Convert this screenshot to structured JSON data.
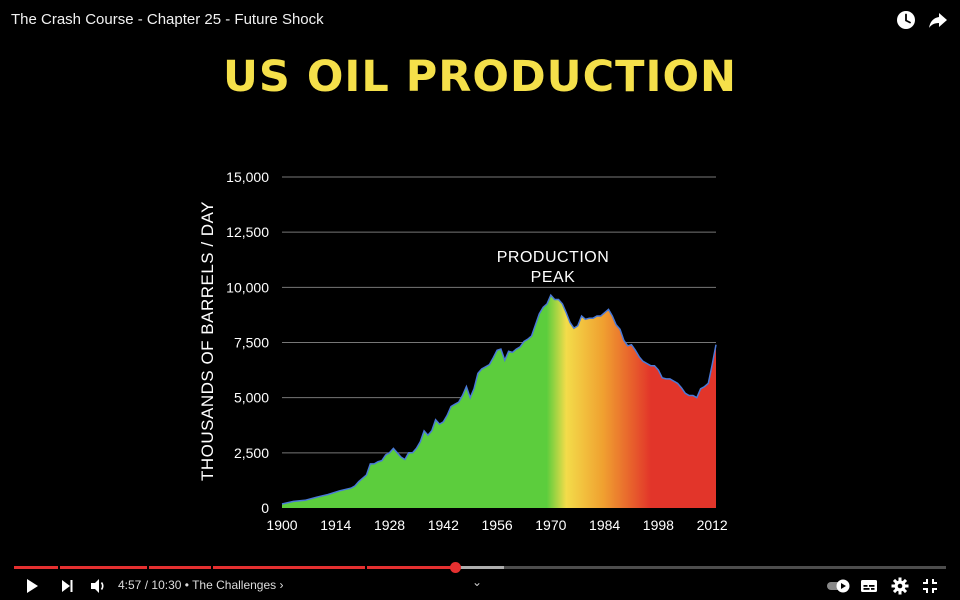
{
  "player": {
    "title": "The Crash Course - Chapter 25 - Future Shock",
    "time_current": "4:57",
    "time_total": "10:30",
    "chapter": "The Challenges",
    "progress_played": 0.473,
    "progress_buffered": 0.526
  },
  "slide": {
    "title": "US OIL PRODUCTION",
    "title_color": "#f5e04a"
  },
  "icons": {
    "watch_later": "clock-icon",
    "share": "share-icon",
    "play": "play-icon",
    "next": "next-icon",
    "volume": "volume-icon",
    "autoplay": "autoplay-toggle-icon",
    "subtitles": "subtitles-icon",
    "settings": "gear-icon",
    "exit_fullscreen": "exit-fullscreen-icon"
  },
  "chart_data": {
    "type": "area",
    "ylabel": "THOUSANDS OF BARRELS / DAY",
    "ylim": [
      0,
      15000
    ],
    "yticks": [
      0,
      2500,
      5000,
      7500,
      10000,
      12500,
      15000
    ],
    "ytick_labels": [
      "0",
      "2,500",
      "5,000",
      "7,500",
      "10,000",
      "12,500",
      "15,000"
    ],
    "xlim": [
      1900,
      2013
    ],
    "xticks": [
      1900,
      1914,
      1928,
      1942,
      1956,
      1970,
      1984,
      1998,
      2012
    ],
    "xtick_labels": [
      "1900",
      "1914",
      "1928",
      "1942",
      "1956",
      "1970",
      "1984",
      "1998",
      "2012"
    ],
    "annotation": {
      "text": [
        "PRODUCTION",
        "PEAK"
      ],
      "x": 1970,
      "y": 10200
    },
    "grid": true,
    "colors": {
      "pre_peak": "#5ccd3d",
      "peak": "#f3dc4a",
      "post_peak_mid": "#f0a030",
      "late": "#e2352a",
      "line": "#4a7ad8"
    },
    "series": [
      {
        "x": [
          1900,
          1903,
          1906,
          1909,
          1912,
          1915,
          1918,
          1919,
          1920,
          1921,
          1922,
          1923,
          1924,
          1925,
          1926,
          1927,
          1928,
          1929,
          1930,
          1931,
          1932,
          1933,
          1934,
          1935,
          1936,
          1937,
          1938,
          1939,
          1940,
          1941,
          1942,
          1943,
          1944,
          1945,
          1946,
          1947,
          1948,
          1949,
          1950,
          1951,
          1952,
          1953,
          1954,
          1955,
          1956,
          1957,
          1958,
          1959,
          1960,
          1961,
          1962,
          1963,
          1964,
          1965,
          1966,
          1967,
          1968,
          1969,
          1970,
          1971,
          1972,
          1973,
          1974,
          1975,
          1976,
          1977,
          1978,
          1979,
          1980,
          1981,
          1982,
          1983,
          1984,
          1985,
          1986,
          1987,
          1988,
          1989,
          1990,
          1991,
          1992,
          1993,
          1994,
          1995,
          1996,
          1997,
          1998,
          1999,
          2000,
          2001,
          2002,
          2003,
          2004,
          2005,
          2006,
          2007,
          2008,
          2009,
          2010,
          2011,
          2012,
          2013
        ],
        "y": [
          180,
          300,
          350,
          490,
          610,
          780,
          900,
          1000,
          1200,
          1350,
          1500,
          2000,
          2000,
          2100,
          2150,
          2400,
          2500,
          2700,
          2500,
          2300,
          2200,
          2500,
          2500,
          2700,
          3000,
          3500,
          3300,
          3500,
          4000,
          3800,
          3900,
          4200,
          4600,
          4700,
          4800,
          5100,
          5500,
          5000,
          5400,
          6100,
          6300,
          6400,
          6500,
          6800,
          7150,
          7200,
          6700,
          7100,
          7050,
          7200,
          7300,
          7550,
          7650,
          7800,
          8300,
          8800,
          9100,
          9250,
          9650,
          9450,
          9450,
          9250,
          8850,
          8400,
          8150,
          8250,
          8700,
          8550,
          8600,
          8600,
          8700,
          8700,
          8850,
          9000,
          8700,
          8300,
          8100,
          7600,
          7350,
          7400,
          7150,
          6850,
          6650,
          6550,
          6450,
          6450,
          6250,
          5900,
          5850,
          5850,
          5750,
          5650,
          5450,
          5200,
          5100,
          5100,
          5000,
          5400,
          5500,
          5650,
          6500,
          7400
        ]
      }
    ]
  }
}
